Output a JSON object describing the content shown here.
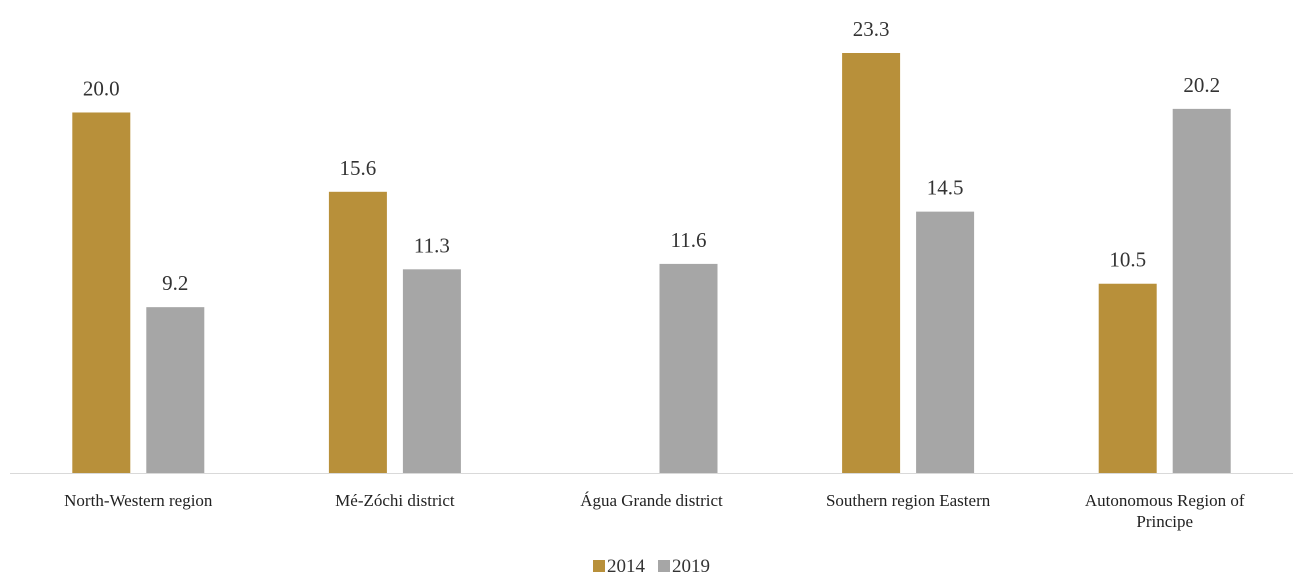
{
  "chart_data": {
    "type": "bar",
    "title": "",
    "xlabel": "",
    "ylabel": "",
    "categories": [
      [
        "North-Western region"
      ],
      [
        "Mé-Zóchi district"
      ],
      [
        "Água Grande district"
      ],
      [
        "Southern region Eastern"
      ],
      [
        "Autonomous Region of",
        "Principe"
      ]
    ],
    "series": [
      {
        "name": "2014",
        "color": "#B8903A",
        "values": [
          20.0,
          15.6,
          null,
          23.3,
          10.5
        ],
        "labels": [
          "20.0",
          "15.6",
          "",
          "23.3",
          "10.5"
        ]
      },
      {
        "name": "2019",
        "color": "#A6A6A6",
        "values": [
          9.2,
          11.3,
          11.6,
          14.5,
          20.2
        ],
        "labels": [
          "9.2",
          "11.3",
          "11.6",
          "14.5",
          "20.2"
        ]
      }
    ],
    "ylim": [
      0,
      23.3
    ],
    "grid": false,
    "legend": "bottom-center",
    "axis_color": "#D9D9D9"
  }
}
